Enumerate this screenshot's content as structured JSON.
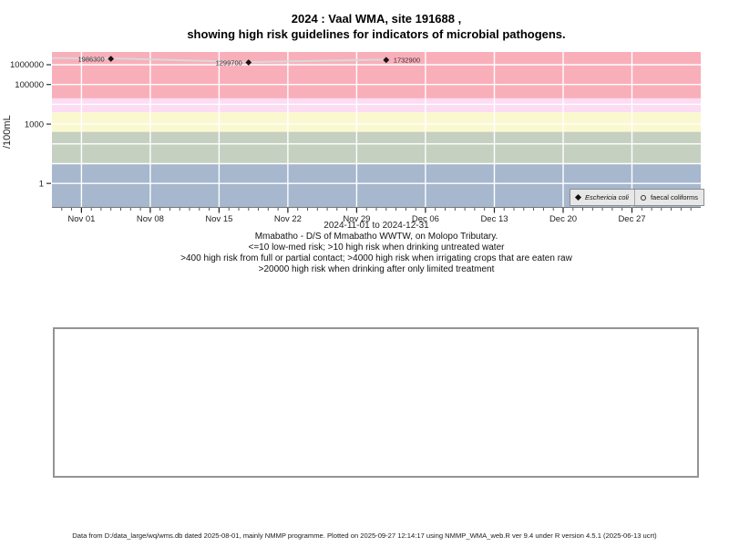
{
  "title": {
    "line1": "2024 : Vaal WMA, site 191688 ,",
    "line2": "showing high risk guidelines for indicators of microbial pathogens."
  },
  "subtitle_lines": [
    "Mmabatho - D/S of Mmabatho WWTW, on Molopo Tributary.",
    "<=10 low-med risk; >10 high risk when drinking untreated water",
    ">400 high risk from full or partial contact; >4000 high risk when irrigating crops that are eaten raw",
    ">20000 high risk when drinking after only limited treatment"
  ],
  "footer": "Data from D:/data_large/wq/wms.db dated 2025-08-01, mainly NMMP programme. Plotted on 2025-09-27 12:14:17 using NMMP_WMA_web.R ver 9.4 under R version 4.5.1 (2025-06-13 ucrt)",
  "chart_data": {
    "type": "line",
    "title": "2024 : Vaal WMA, site 191688 , showing high risk guidelines for indicators of microbial pathogens.",
    "xlabel": "2024-11-01 to 2024-12-31",
    "ylabel": "/100mL",
    "x_axis": {
      "label": "2024-11-01 to 2024-12-31",
      "range": [
        "2024-10-29",
        "2025-01-03"
      ],
      "minor_tick_interval_days": 1,
      "ticks": [
        {
          "date": "2024-11-01",
          "label": "Nov 01"
        },
        {
          "date": "2024-11-08",
          "label": "Nov 08"
        },
        {
          "date": "2024-11-15",
          "label": "Nov 15"
        },
        {
          "date": "2024-11-22",
          "label": "Nov 22"
        },
        {
          "date": "2024-11-29",
          "label": "Nov 29"
        },
        {
          "date": "2024-12-06",
          "label": "Dec 06"
        },
        {
          "date": "2024-12-13",
          "label": "Dec 13"
        },
        {
          "date": "2024-12-20",
          "label": "Dec 20"
        },
        {
          "date": "2024-12-27",
          "label": "Dec 27"
        }
      ]
    },
    "y_axis": {
      "label": "/100mL",
      "scale": "log10",
      "range": [
        0.065,
        4400000
      ],
      "ticks": [
        {
          "value": 1,
          "label": "1"
        },
        {
          "value": 1000,
          "label": "1000"
        },
        {
          "value": 100000,
          "label": "100000"
        },
        {
          "value": 1000000,
          "label": "1000000"
        }
      ],
      "gridlines": [
        1,
        10,
        100,
        1000,
        10000,
        100000,
        1000000
      ]
    },
    "guideline_bands": [
      {
        "from": 20000,
        "to": "top",
        "color": "#f9afba",
        "risk": ">20000 high risk when drinking after only limited treatment"
      },
      {
        "from": 4000,
        "to": 20000,
        "color": "#fbdcf3",
        "risk": ">4000 high risk when irrigating crops that are eaten raw"
      },
      {
        "from": 400,
        "to": 4000,
        "color": "#faf8cf",
        "risk": ">400 high risk from full or partial contact"
      },
      {
        "from": 10,
        "to": 400,
        "color": "#c5d0c1",
        "risk": ">10 high risk when drinking untreated water"
      },
      {
        "from": "bottom",
        "to": 10,
        "color": "#a6b7ce",
        "risk": "<=10 low-med risk"
      }
    ],
    "series": [
      {
        "name": "Eschericia coli",
        "marker": "filled-diamond",
        "marker_color": "#141414",
        "label_color": "#333333",
        "points": [
          {
            "date": "2024-11-04",
            "value": 1986300,
            "label": "1986300",
            "label_side": "left"
          },
          {
            "date": "2024-11-18",
            "value": 1299700,
            "label": "1299700",
            "label_side": "left"
          },
          {
            "date": "2024-12-02",
            "value": 1732900,
            "label": "1732900",
            "label_side": "right"
          }
        ]
      },
      {
        "name": "faecal coliforms",
        "marker": "open-circle",
        "line_color": "#d8d8d8",
        "points": [
          {
            "date": "2024-10-29",
            "value": 2150000,
            "clipped_at_left_edge": true
          },
          {
            "date": "2024-11-04",
            "value": 2100000
          },
          {
            "date": "2024-11-18",
            "value": 1350000
          },
          {
            "date": "2024-12-02",
            "value": 1800000
          }
        ]
      }
    ],
    "legend": {
      "position": "bottom-right",
      "entries": [
        {
          "symbol": "filled-diamond",
          "label": "Eschericia coli",
          "italic": true
        },
        {
          "symbol": "open-circle",
          "label": "faecal coliforms",
          "italic": false
        }
      ]
    },
    "grid": {
      "color": "#ffffff",
      "vertical": "weekly",
      "horizontal": "log-decades"
    }
  }
}
